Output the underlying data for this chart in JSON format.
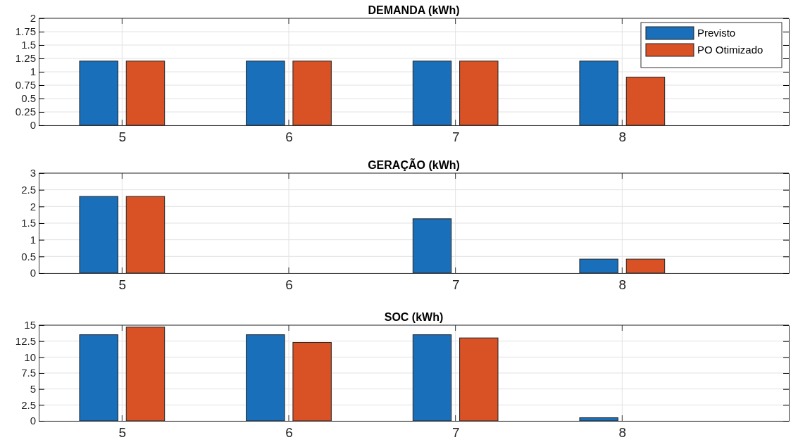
{
  "chart_data": [
    {
      "type": "bar",
      "title": "DEMANDA (kWh)",
      "x": [
        5,
        6,
        7,
        8
      ],
      "xlim": [
        4.5,
        9
      ],
      "xticks": [
        5,
        6,
        7,
        8
      ],
      "ylim": [
        0,
        2
      ],
      "yticks": [
        0,
        0.25,
        0.5,
        0.75,
        1,
        1.25,
        1.5,
        1.75,
        2
      ],
      "grid": true,
      "legend": "top right",
      "series": [
        {
          "name": "Previsto",
          "color": "#1a6fba",
          "values": [
            1.2,
            1.2,
            1.2,
            1.2
          ]
        },
        {
          "name": "PO Otimizado",
          "color": "#d95226",
          "values": [
            1.2,
            1.2,
            1.2,
            0.9
          ]
        }
      ]
    },
    {
      "type": "bar",
      "title": "GERAÇÃO (kWh)",
      "x": [
        5,
        6,
        7,
        8
      ],
      "xlim": [
        4.5,
        9
      ],
      "xticks": [
        5,
        6,
        7,
        8
      ],
      "ylim": [
        0,
        3
      ],
      "yticks": [
        0,
        0.5,
        1,
        1.5,
        2,
        2.5,
        3
      ],
      "grid": true,
      "series": [
        {
          "color": "#1a6fba",
          "values": [
            2.3,
            0,
            1.63,
            0.42
          ]
        },
        {
          "color": "#d95226",
          "values": [
            2.3,
            0,
            0,
            0.42
          ]
        }
      ]
    },
    {
      "type": "bar",
      "title": "SOC (kWh)",
      "x": [
        5,
        6,
        7,
        8
      ],
      "xlim": [
        4.5,
        9
      ],
      "xticks": [
        5,
        6,
        7,
        8
      ],
      "ylim": [
        0,
        15
      ],
      "yticks": [
        0,
        2.5,
        5,
        7.5,
        10,
        12.5,
        15
      ],
      "grid": true,
      "series": [
        {
          "color": "#1a6fba",
          "values": [
            13.5,
            13.5,
            13.5,
            0.5
          ]
        },
        {
          "color": "#d95226",
          "values": [
            14.7,
            12.3,
            13.0,
            0
          ]
        }
      ]
    }
  ]
}
